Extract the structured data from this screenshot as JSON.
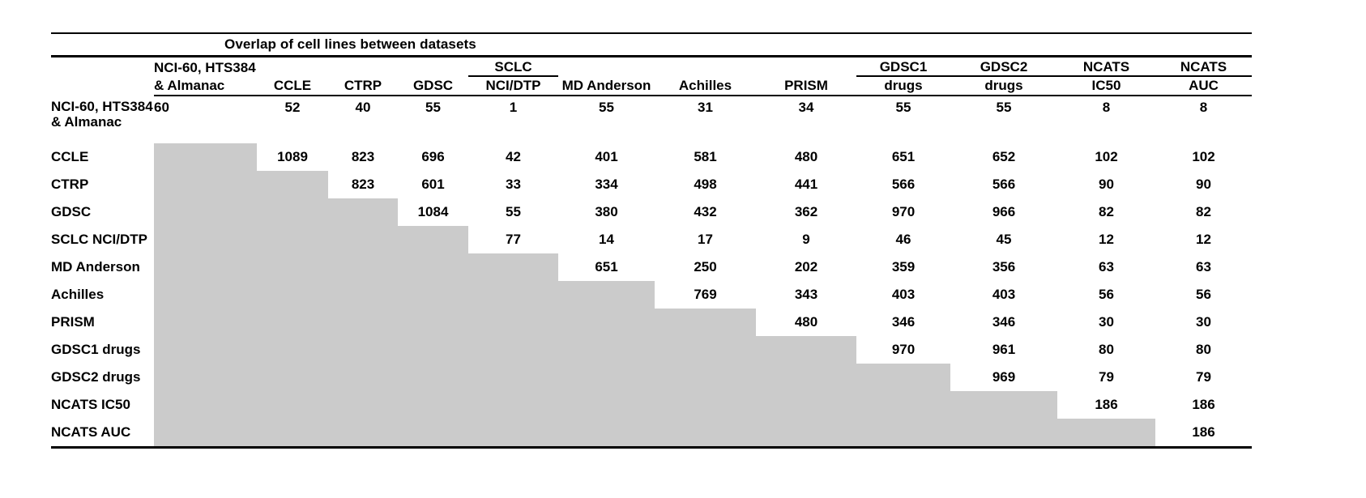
{
  "page": {
    "background": "#ffffff",
    "text_color": "#000000"
  },
  "table": {
    "title": "Overlap of cell lines between datasets",
    "grey_color": "#cbcbcb",
    "columns": [
      {
        "top": "NCI-60, HTS384",
        "bottom": "& Almanac",
        "group_underline": false,
        "align": "left"
      },
      {
        "top": "",
        "bottom": "CCLE",
        "group_underline": false
      },
      {
        "top": "",
        "bottom": "CTRP",
        "group_underline": false
      },
      {
        "top": "",
        "bottom": "GDSC",
        "group_underline": false
      },
      {
        "top": "SCLC",
        "bottom": "NCI/DTP",
        "group_underline": true
      },
      {
        "top": "",
        "bottom": "MD Anderson",
        "group_underline": false
      },
      {
        "top": "",
        "bottom": "Achilles",
        "group_underline": false
      },
      {
        "top": "",
        "bottom": "PRISM",
        "group_underline": false
      },
      {
        "top": "GDSC1",
        "bottom": "drugs",
        "group_underline": true
      },
      {
        "top": "GDSC2",
        "bottom": "drugs",
        "group_underline": true
      },
      {
        "top": "NCATS",
        "bottom": "IC50",
        "group_underline": true
      },
      {
        "top": "NCATS",
        "bottom": "AUC",
        "group_underline": true
      }
    ],
    "rows": [
      {
        "label": "NCI-60, HTS384 & Almanac",
        "label_lines": [
          "NCI-60, HTS384",
          "& Almanac"
        ],
        "values": [
          "60",
          "52",
          "40",
          "55",
          "1",
          "55",
          "31",
          "34",
          "55",
          "55",
          "8",
          "8"
        ]
      },
      {
        "label": "CCLE",
        "values": [
          null,
          "1089",
          "823",
          "696",
          "42",
          "401",
          "581",
          "480",
          "651",
          "652",
          "102",
          "102"
        ]
      },
      {
        "label": "CTRP",
        "values": [
          null,
          null,
          "823",
          "601",
          "33",
          "334",
          "498",
          "441",
          "566",
          "566",
          "90",
          "90"
        ]
      },
      {
        "label": "GDSC",
        "values": [
          null,
          null,
          null,
          "1084",
          "55",
          "380",
          "432",
          "362",
          "970",
          "966",
          "82",
          "82"
        ]
      },
      {
        "label": "SCLC NCI/DTP",
        "values": [
          null,
          null,
          null,
          null,
          "77",
          "14",
          "17",
          "9",
          "46",
          "45",
          "12",
          "12"
        ]
      },
      {
        "label": "MD Anderson",
        "values": [
          null,
          null,
          null,
          null,
          null,
          "651",
          "250",
          "202",
          "359",
          "356",
          "63",
          "63"
        ]
      },
      {
        "label": "Achilles",
        "values": [
          null,
          null,
          null,
          null,
          null,
          null,
          "769",
          "343",
          "403",
          "403",
          "56",
          "56"
        ]
      },
      {
        "label": "PRISM",
        "values": [
          null,
          null,
          null,
          null,
          null,
          null,
          null,
          "480",
          "346",
          "346",
          "30",
          "30"
        ]
      },
      {
        "label": "GDSC1 drugs",
        "values": [
          null,
          null,
          null,
          null,
          null,
          null,
          null,
          null,
          "970",
          "961",
          "80",
          "80"
        ]
      },
      {
        "label": "GDSC2 drugs",
        "values": [
          null,
          null,
          null,
          null,
          null,
          null,
          null,
          null,
          null,
          "969",
          "79",
          "79"
        ]
      },
      {
        "label": "NCATS IC50",
        "values": [
          null,
          null,
          null,
          null,
          null,
          null,
          null,
          null,
          null,
          null,
          "186",
          "186"
        ]
      },
      {
        "label": "NCATS AUC",
        "values": [
          null,
          null,
          null,
          null,
          null,
          null,
          null,
          null,
          null,
          null,
          null,
          "186"
        ]
      }
    ]
  }
}
